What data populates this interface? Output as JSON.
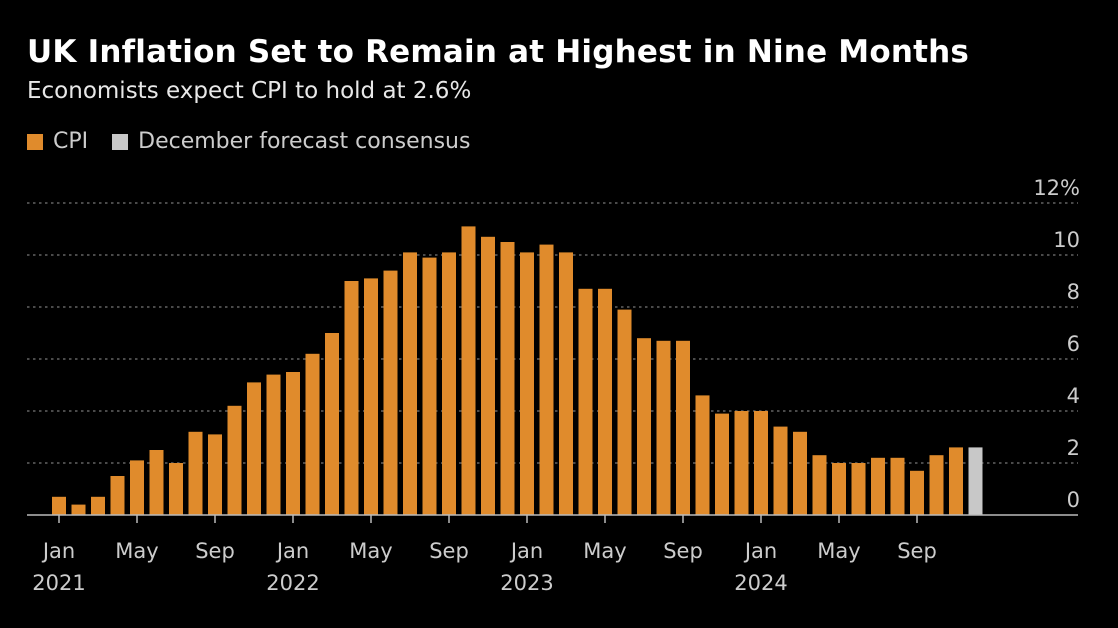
{
  "title": "UK Inflation Set to Remain at Highest in Nine Months",
  "subtitle": "Economists expect CPI to hold at 2.6%",
  "colors": {
    "cpi": "#e08b2c",
    "forecast": "#c8c8c8",
    "grid": "#777777",
    "tick": "#cccccc"
  },
  "chart_data": {
    "type": "bar",
    "legend": [
      {
        "name": "CPI",
        "color": "#e08b2c"
      },
      {
        "name": "December forecast consensus",
        "color": "#c8c8c8"
      }
    ],
    "legend_position": "top-left",
    "ylim": [
      0,
      12
    ],
    "y_ticks": [
      {
        "value": 0,
        "label": "0"
      },
      {
        "value": 2,
        "label": "2"
      },
      {
        "value": 4,
        "label": "4"
      },
      {
        "value": 6,
        "label": "6"
      },
      {
        "value": 8,
        "label": "8"
      },
      {
        "value": 10,
        "label": "10"
      },
      {
        "value": 12,
        "label": "12%"
      }
    ],
    "grid": true,
    "x_tick_labels": [
      {
        "month_index": 0,
        "label": "Jan",
        "year": "2021"
      },
      {
        "month_index": 4,
        "label": "May",
        "year": ""
      },
      {
        "month_index": 8,
        "label": "Sep",
        "year": ""
      },
      {
        "month_index": 12,
        "label": "Jan",
        "year": "2022"
      },
      {
        "month_index": 16,
        "label": "May",
        "year": ""
      },
      {
        "month_index": 20,
        "label": "Sep",
        "year": ""
      },
      {
        "month_index": 24,
        "label": "Jan",
        "year": "2023"
      },
      {
        "month_index": 28,
        "label": "May",
        "year": ""
      },
      {
        "month_index": 32,
        "label": "Sep",
        "year": ""
      },
      {
        "month_index": 36,
        "label": "Jan",
        "year": "2024"
      },
      {
        "month_index": 40,
        "label": "May",
        "year": ""
      },
      {
        "month_index": 44,
        "label": "Sep",
        "year": ""
      }
    ],
    "series": [
      {
        "name": "CPI",
        "start": "2021-01",
        "values": [
          0.7,
          0.4,
          0.7,
          1.5,
          2.1,
          2.5,
          2.0,
          3.2,
          3.1,
          4.2,
          5.1,
          5.4,
          5.5,
          6.2,
          7.0,
          9.0,
          9.1,
          9.4,
          10.1,
          9.9,
          10.1,
          11.1,
          10.7,
          10.5,
          10.1,
          10.4,
          10.1,
          8.7,
          8.7,
          7.9,
          6.8,
          6.7,
          6.7,
          4.6,
          3.9,
          4.0,
          4.0,
          3.4,
          3.2,
          2.3,
          2.0,
          2.0,
          2.2,
          2.2,
          1.7,
          2.3,
          2.6
        ]
      },
      {
        "name": "December forecast consensus",
        "start": "2024-12",
        "values": [
          2.6
        ]
      }
    ]
  }
}
